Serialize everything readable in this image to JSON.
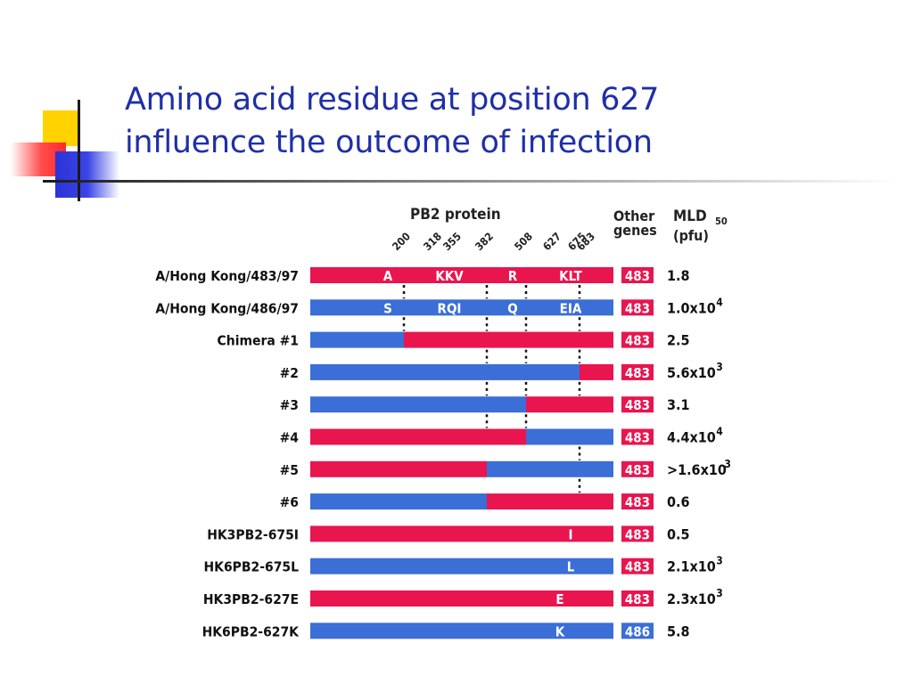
{
  "slide": {
    "title_line1": "Amino acid residue at position 627",
    "title_line2": "influence the outcome of infection"
  },
  "colors": {
    "title": "#1f2fa8",
    "hk483": "#e8154f",
    "hk486": "#3b6ed6"
  },
  "figure": {
    "header_protein": "PB2 protein",
    "header_other_genes_1": "Other",
    "header_other_genes_2": "genes",
    "header_mld": "MLD",
    "header_mld_sub": "50",
    "header_unit": "(pfu)",
    "positions": [
      "200",
      "318",
      "355",
      "382",
      "508",
      "627",
      "675",
      "683"
    ],
    "rows": [
      {
        "label": "A/Hong Kong/483/97",
        "segments": [
          {
            "color": "red",
            "from": 0,
            "to": 1
          }
        ],
        "residues": [
          "A",
          "KKV",
          "R",
          "KLT"
        ],
        "gene": "483",
        "gene_color": "red",
        "mld": "1.8",
        "mld_exp": ""
      },
      {
        "label": "A/Hong Kong/486/97",
        "segments": [
          {
            "color": "blue",
            "from": 0,
            "to": 1
          }
        ],
        "residues": [
          "S",
          "RQI",
          "Q",
          "EIA"
        ],
        "gene": "483",
        "gene_color": "red",
        "mld": "1.0x10",
        "mld_exp": "4"
      },
      {
        "label": "Chimera #1",
        "segments": [
          {
            "color": "blue",
            "from": 0,
            "to": 200
          },
          {
            "color": "red",
            "from": 200,
            "to": 1
          }
        ],
        "residues": [],
        "gene": "483",
        "gene_color": "red",
        "mld": "2.5",
        "mld_exp": ""
      },
      {
        "label": "#2",
        "segments": [
          {
            "color": "blue",
            "from": 0,
            "to": 675
          },
          {
            "color": "red",
            "from": 675,
            "to": 1
          }
        ],
        "residues": [],
        "gene": "483",
        "gene_color": "red",
        "mld": "5.6x10",
        "mld_exp": "3"
      },
      {
        "label": "#3",
        "segments": [
          {
            "color": "blue",
            "from": 0,
            "to": 508
          },
          {
            "color": "red",
            "from": 508,
            "to": 1
          }
        ],
        "residues": [],
        "gene": "483",
        "gene_color": "red",
        "mld": "3.1",
        "mld_exp": ""
      },
      {
        "label": "#4",
        "segments": [
          {
            "color": "red",
            "from": 0,
            "to": 508
          },
          {
            "color": "blue",
            "from": 508,
            "to": 1
          }
        ],
        "residues": [],
        "gene": "483",
        "gene_color": "red",
        "mld": "4.4x10",
        "mld_exp": "4"
      },
      {
        "label": "#5",
        "segments": [
          {
            "color": "red",
            "from": 0,
            "to": 382
          },
          {
            "color": "blue",
            "from": 382,
            "to": 1
          }
        ],
        "residues": [],
        "gene": "483",
        "gene_color": "red",
        "mld": ">1.6x10",
        "mld_exp": "3"
      },
      {
        "label": "#6",
        "segments": [
          {
            "color": "blue",
            "from": 0,
            "to": 382
          },
          {
            "color": "red",
            "from": 382,
            "to": 1
          }
        ],
        "residues": [],
        "gene": "483",
        "gene_color": "red",
        "mld": "0.6",
        "mld_exp": ""
      },
      {
        "label": "HK3PB2-675I",
        "segments": [
          {
            "color": "red",
            "from": 0,
            "to": 1
          }
        ],
        "residues": [
          "I"
        ],
        "gene": "483",
        "gene_color": "red",
        "mld": "0.5",
        "mld_exp": ""
      },
      {
        "label": "HK6PB2-675L",
        "segments": [
          {
            "color": "blue",
            "from": 0,
            "to": 1
          }
        ],
        "residues": [
          "L"
        ],
        "gene": "483",
        "gene_color": "red",
        "mld": "2.1x10",
        "mld_exp": "3"
      },
      {
        "label": "HK3PB2-627E",
        "segments": [
          {
            "color": "red",
            "from": 0,
            "to": 1
          }
        ],
        "residues": [
          "E"
        ],
        "gene": "483",
        "gene_color": "red",
        "mld": "2.3x10",
        "mld_exp": "3"
      },
      {
        "label": "HK6PB2-627K",
        "segments": [
          {
            "color": "blue",
            "from": 0,
            "to": 1
          }
        ],
        "residues": [
          "K"
        ],
        "gene": "486",
        "gene_color": "blue",
        "mld": "5.8",
        "mld_exp": ""
      }
    ]
  }
}
